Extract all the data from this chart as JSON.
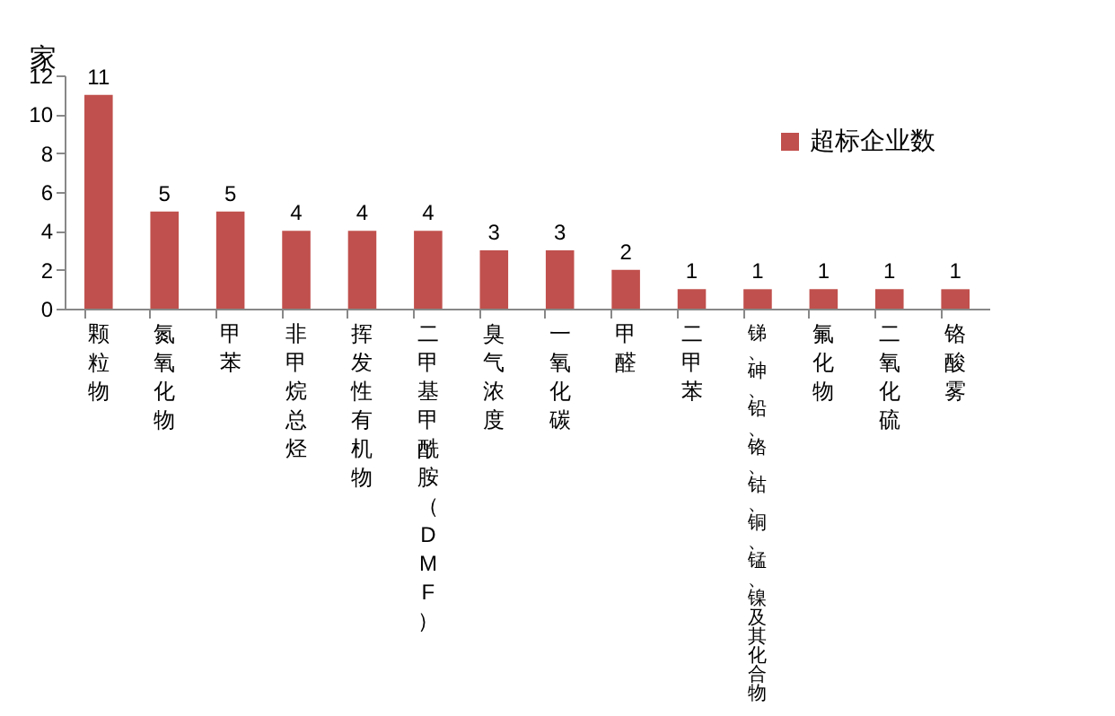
{
  "chart_data": {
    "type": "bar",
    "ylabel": "家",
    "categories": [
      "颗粒物",
      "氮氧化物",
      "甲苯",
      "非甲烷总烃",
      "挥发性有机物",
      "二甲基甲酰胺（DMF）",
      "臭气浓度",
      "一氧化碳",
      "甲醛",
      "二甲苯",
      "锑、砷、铅、铬、钴、铜、锰、镍及其化合物",
      "氟化物",
      "二氧化硫",
      "铬酸雾"
    ],
    "series": [
      {
        "name": "超标企业数",
        "color": "#c0504d",
        "values": [
          11,
          5,
          5,
          4,
          4,
          4,
          3,
          3,
          2,
          1,
          1,
          1,
          1,
          1
        ]
      }
    ],
    "ylim": [
      0,
      12
    ],
    "yticks": [
      0,
      2,
      4,
      6,
      8,
      10,
      12
    ],
    "grid": false,
    "legend": "top right",
    "data_labels": true
  }
}
